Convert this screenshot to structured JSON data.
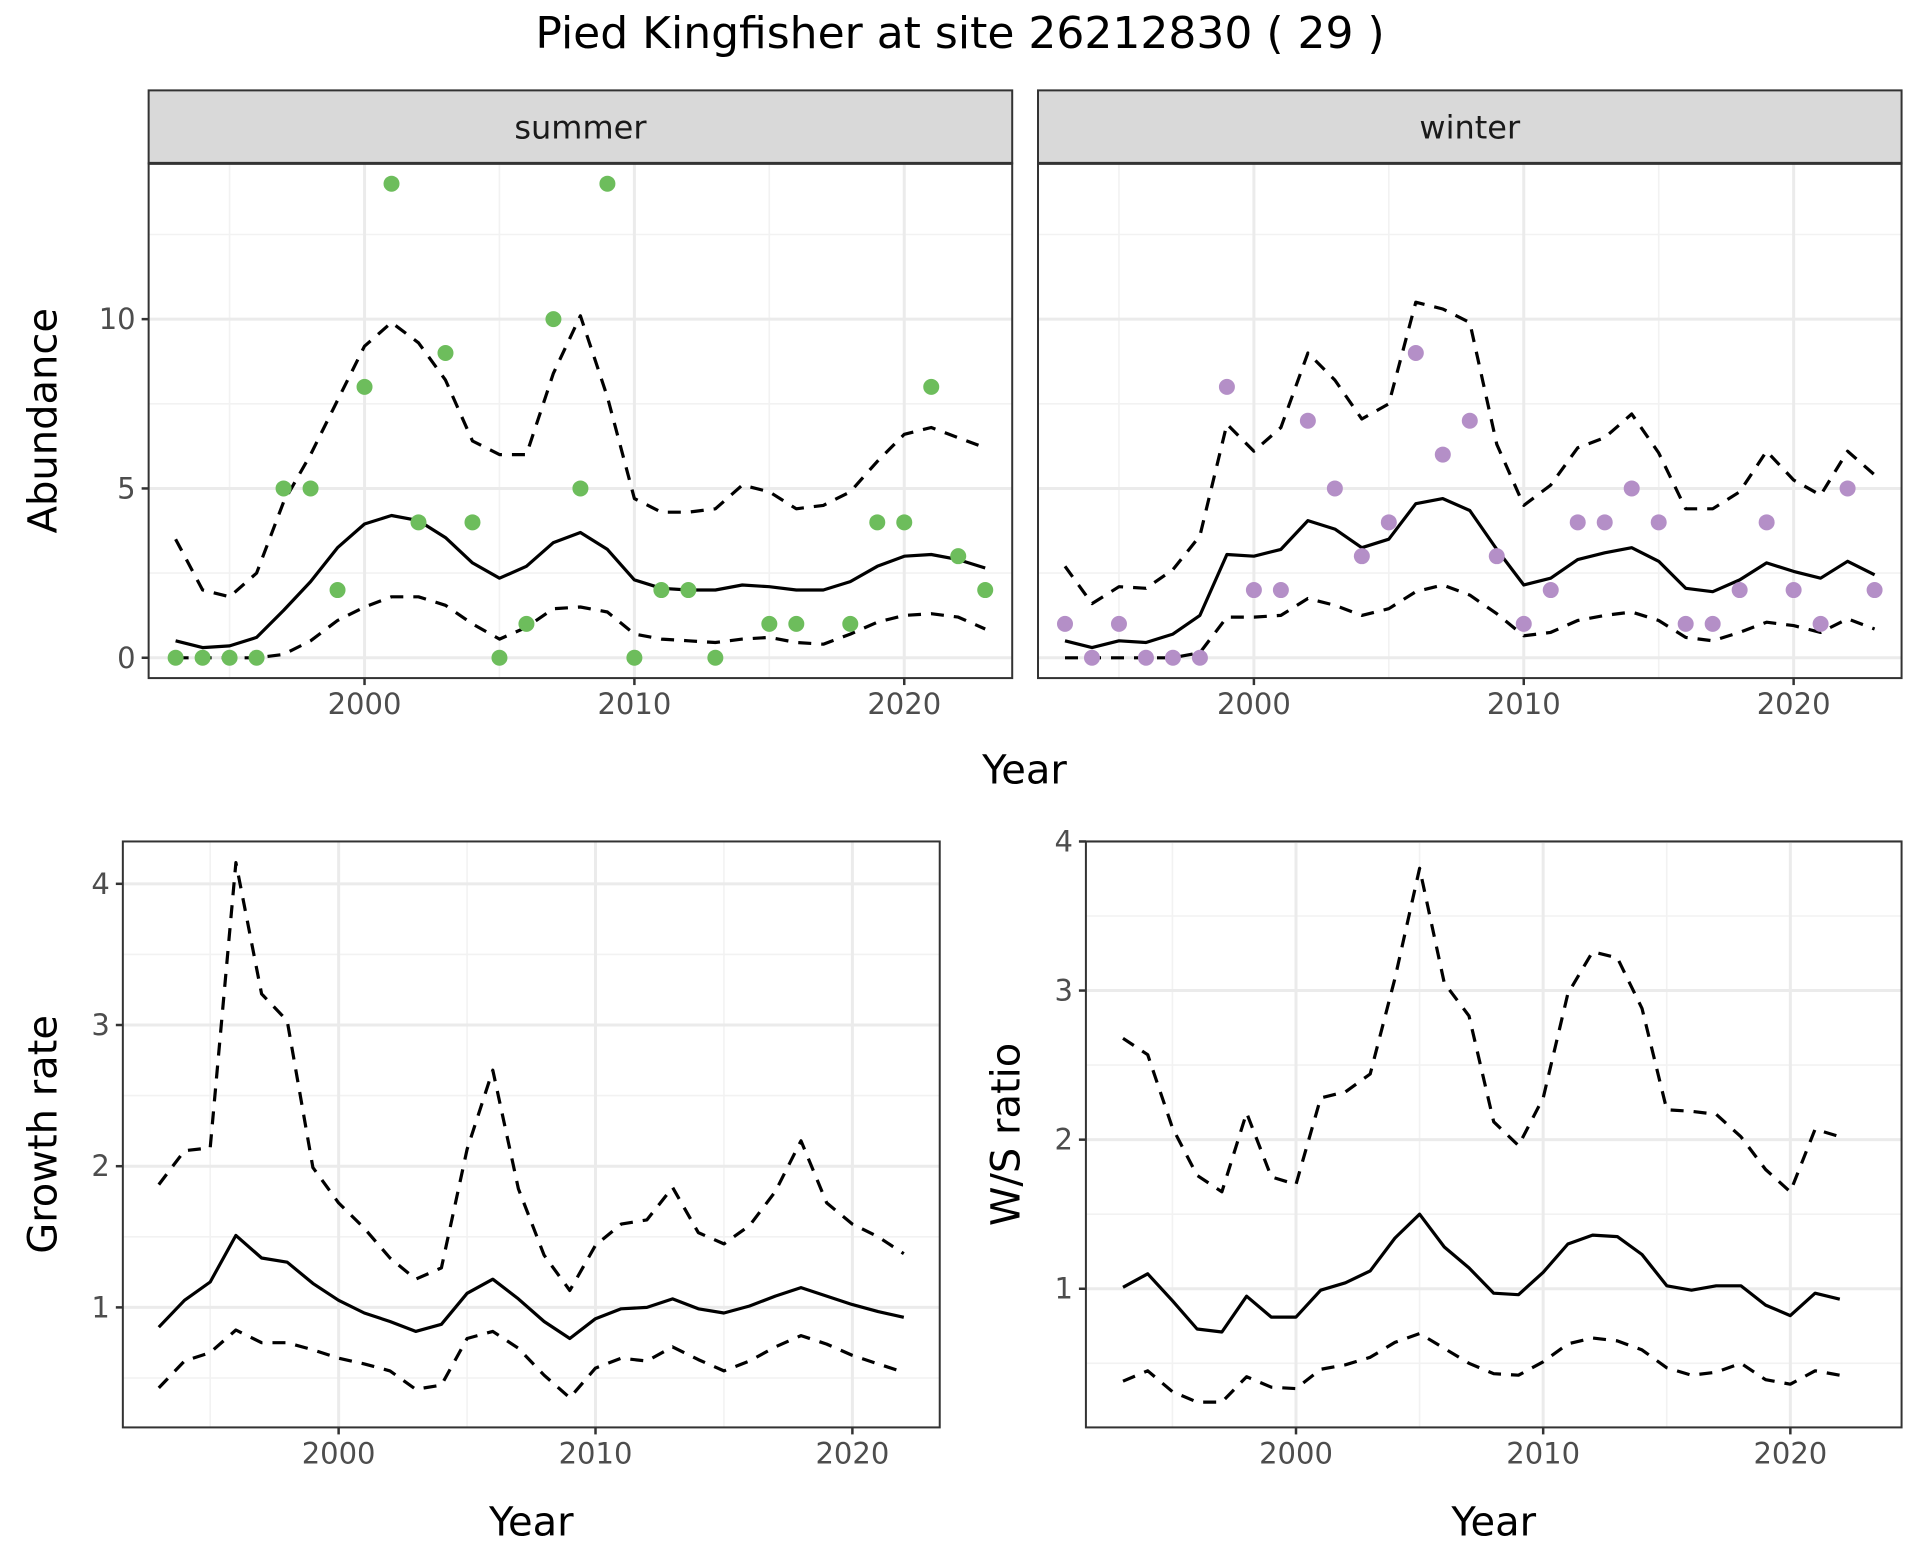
{
  "title": "Pied Kingfisher at site 26212830 ( 29 )",
  "colors": {
    "summer_points": "#6dbd5c",
    "winter_points": "#b48fc7",
    "line": "#000000",
    "grid_major": "#ebebeb",
    "grid_minor": "#f2f2f2",
    "strip_bg": "#d9d9d9",
    "panel_border": "#333333"
  },
  "chart_data": [
    {
      "id": "abundance",
      "type": "scatter",
      "facets": [
        "summer",
        "winter"
      ],
      "xlabel": "Year",
      "ylabel": "Abundance",
      "xlim": [
        1992,
        2024
      ],
      "ylim": [
        -0.6,
        14.6
      ],
      "xticks": [
        2000,
        2010,
        2020
      ],
      "yticks": [
        0,
        5,
        10
      ],
      "grid": true,
      "series": {
        "summer": {
          "points": {
            "x": [
              1993,
              1994,
              1995,
              1996,
              1997,
              1998,
              1999,
              2000,
              2001,
              2002,
              2003,
              2004,
              2005,
              2006,
              2007,
              2008,
              2009,
              2010,
              2011,
              2012,
              2013,
              2015,
              2016,
              2018,
              2019,
              2020,
              2021,
              2022,
              2023
            ],
            "y": [
              0,
              0,
              0,
              0,
              5,
              5,
              2,
              8,
              14,
              4,
              9,
              4,
              0,
              1,
              10,
              5,
              14,
              0,
              2,
              2,
              0,
              1,
              1,
              1,
              4,
              4,
              8,
              3,
              2
            ]
          },
          "mean": {
            "x": [
              1993,
              1994,
              1995,
              1996,
              1997,
              1998,
              1999,
              2000,
              2001,
              2002,
              2003,
              2004,
              2005,
              2006,
              2007,
              2008,
              2009,
              2010,
              2011,
              2012,
              2013,
              2014,
              2015,
              2016,
              2017,
              2018,
              2019,
              2020,
              2021,
              2022,
              2023
            ],
            "y": [
              0.5,
              0.3,
              0.35,
              0.6,
              1.4,
              2.25,
              3.25,
              3.95,
              4.2,
              4.05,
              3.55,
              2.8,
              2.35,
              2.7,
              3.4,
              3.7,
              3.2,
              2.3,
              2.05,
              2.0,
              2.0,
              2.15,
              2.1,
              2.0,
              2.0,
              2.25,
              2.7,
              3.0,
              3.05,
              2.9,
              2.65
            ]
          },
          "upper": {
            "x": [
              1993,
              1994,
              1995,
              1996,
              1997,
              1998,
              1999,
              2000,
              2001,
              2002,
              2003,
              2004,
              2005,
              2006,
              2007,
              2008,
              2009,
              2010,
              2011,
              2012,
              2013,
              2014,
              2015,
              2016,
              2017,
              2018,
              2019,
              2020,
              2021,
              2022,
              2023
            ],
            "y": [
              3.5,
              2.0,
              1.8,
              2.5,
              4.6,
              6.0,
              7.6,
              9.2,
              9.9,
              9.3,
              8.2,
              6.4,
              6.0,
              6.0,
              8.4,
              10.1,
              7.7,
              4.7,
              4.3,
              4.3,
              4.4,
              5.1,
              4.9,
              4.4,
              4.5,
              4.9,
              5.8,
              6.6,
              6.8,
              6.5,
              6.2
            ]
          },
          "lower": {
            "x": [
              1993,
              1994,
              1995,
              1996,
              1997,
              1998,
              1999,
              2000,
              2001,
              2002,
              2003,
              2004,
              2005,
              2006,
              2007,
              2008,
              2009,
              2010,
              2011,
              2012,
              2013,
              2014,
              2015,
              2016,
              2017,
              2018,
              2019,
              2020,
              2021,
              2022,
              2023
            ],
            "y": [
              0,
              0,
              0,
              0,
              0.1,
              0.5,
              1.1,
              1.5,
              1.8,
              1.8,
              1.55,
              1.0,
              0.55,
              0.9,
              1.45,
              1.5,
              1.35,
              0.7,
              0.55,
              0.5,
              0.45,
              0.55,
              0.6,
              0.45,
              0.4,
              0.7,
              1.05,
              1.25,
              1.3,
              1.2,
              0.85
            ]
          }
        },
        "winter": {
          "points": {
            "x": [
              1993,
              1994,
              1995,
              1996,
              1997,
              1998,
              1999,
              2000,
              2001,
              2002,
              2003,
              2004,
              2005,
              2006,
              2007,
              2008,
              2009,
              2010,
              2011,
              2012,
              2013,
              2014,
              2015,
              2016,
              2017,
              2018,
              2019,
              2020,
              2021,
              2022,
              2023
            ],
            "y": [
              1,
              0,
              1,
              0,
              0,
              0,
              8,
              2,
              2,
              7,
              5,
              3,
              4,
              9,
              6,
              7,
              3,
              1,
              2,
              4,
              4,
              5,
              4,
              1,
              1,
              2,
              4,
              2,
              1,
              5,
              2
            ]
          },
          "mean": {
            "x": [
              1993,
              1994,
              1995,
              1996,
              1997,
              1998,
              1999,
              2000,
              2001,
              2002,
              2003,
              2004,
              2005,
              2006,
              2007,
              2008,
              2009,
              2010,
              2011,
              2012,
              2013,
              2014,
              2015,
              2016,
              2017,
              2018,
              2019,
              2020,
              2021,
              2022,
              2023
            ],
            "y": [
              0.5,
              0.3,
              0.5,
              0.45,
              0.7,
              1.25,
              3.05,
              3.0,
              3.2,
              4.05,
              3.8,
              3.25,
              3.5,
              4.55,
              4.7,
              4.35,
              3.2,
              2.15,
              2.35,
              2.9,
              3.1,
              3.25,
              2.85,
              2.05,
              1.95,
              2.3,
              2.8,
              2.55,
              2.35,
              2.85,
              2.45
            ]
          },
          "upper": {
            "x": [
              1993,
              1994,
              1995,
              1996,
              1997,
              1998,
              1999,
              2000,
              2001,
              2002,
              2003,
              2004,
              2005,
              2006,
              2007,
              2008,
              2009,
              2010,
              2011,
              2012,
              2013,
              2014,
              2015,
              2016,
              2017,
              2018,
              2019,
              2020,
              2021,
              2022,
              2023
            ],
            "y": [
              2.7,
              1.6,
              2.1,
              2.05,
              2.6,
              3.6,
              6.9,
              6.1,
              6.8,
              9.0,
              8.2,
              7.05,
              7.5,
              10.5,
              10.3,
              9.9,
              6.3,
              4.5,
              5.1,
              6.2,
              6.5,
              7.2,
              6.05,
              4.4,
              4.4,
              4.9,
              6.1,
              5.25,
              4.8,
              6.1,
              5.4
            ]
          },
          "lower": {
            "x": [
              1993,
              1994,
              1995,
              1996,
              1997,
              1998,
              1999,
              2000,
              2001,
              2002,
              2003,
              2004,
              2005,
              2006,
              2007,
              2008,
              2009,
              2010,
              2011,
              2012,
              2013,
              2014,
              2015,
              2016,
              2017,
              2018,
              2019,
              2020,
              2021,
              2022,
              2023
            ],
            "y": [
              0,
              0,
              0,
              0,
              0,
              0.15,
              1.2,
              1.2,
              1.25,
              1.75,
              1.55,
              1.25,
              1.45,
              1.95,
              2.15,
              1.85,
              1.3,
              0.65,
              0.75,
              1.1,
              1.25,
              1.35,
              1.1,
              0.6,
              0.5,
              0.75,
              1.05,
              0.95,
              0.75,
              1.15,
              0.85
            ]
          }
        }
      }
    },
    {
      "id": "growth",
      "type": "line",
      "xlabel": "Year",
      "ylabel": "Growth rate",
      "xlim": [
        1991.6,
        2023.4
      ],
      "ylim": [
        0.15,
        4.3
      ],
      "xticks": [
        2000,
        2010,
        2020
      ],
      "yticks": [
        1,
        2,
        3,
        4
      ],
      "grid": true,
      "series": [
        {
          "name": "mean",
          "style": "solid",
          "x": [
            1993,
            1994,
            1995,
            1996,
            1997,
            1998,
            1999,
            2000,
            2001,
            2002,
            2003,
            2004,
            2005,
            2006,
            2007,
            2008,
            2009,
            2010,
            2011,
            2012,
            2013,
            2014,
            2015,
            2016,
            2017,
            2018,
            2019,
            2020,
            2021,
            2022
          ],
          "y": [
            0.86,
            1.05,
            1.18,
            1.51,
            1.35,
            1.32,
            1.17,
            1.05,
            0.96,
            0.9,
            0.83,
            0.88,
            1.1,
            1.2,
            1.06,
            0.9,
            0.78,
            0.92,
            0.99,
            1.0,
            1.06,
            0.99,
            0.96,
            1.01,
            1.08,
            1.14,
            1.08,
            1.02,
            0.97,
            0.93
          ]
        },
        {
          "name": "upper",
          "style": "dashed",
          "x": [
            1993,
            1994,
            1995,
            1996,
            1997,
            1998,
            1999,
            2000,
            2001,
            2002,
            2003,
            2004,
            2005,
            2006,
            2007,
            2008,
            2009,
            2010,
            2011,
            2012,
            2013,
            2014,
            2015,
            2016,
            2017,
            2018,
            2019,
            2020,
            2021,
            2022
          ],
          "y": [
            1.87,
            2.11,
            2.13,
            4.15,
            3.22,
            3.03,
            1.99,
            1.74,
            1.56,
            1.35,
            1.2,
            1.28,
            2.12,
            2.68,
            1.84,
            1.37,
            1.12,
            1.44,
            1.59,
            1.62,
            1.85,
            1.53,
            1.45,
            1.58,
            1.82,
            2.18,
            1.74,
            1.59,
            1.5,
            1.38
          ]
        },
        {
          "name": "lower",
          "style": "dashed",
          "x": [
            1993,
            1994,
            1995,
            1996,
            1997,
            1998,
            1999,
            2000,
            2001,
            2002,
            2003,
            2004,
            2005,
            2006,
            2007,
            2008,
            2009,
            2010,
            2011,
            2012,
            2013,
            2014,
            2015,
            2016,
            2017,
            2018,
            2019,
            2020,
            2021,
            2022
          ],
          "y": [
            0.43,
            0.62,
            0.68,
            0.84,
            0.75,
            0.75,
            0.7,
            0.64,
            0.6,
            0.55,
            0.42,
            0.45,
            0.78,
            0.83,
            0.71,
            0.52,
            0.36,
            0.57,
            0.64,
            0.62,
            0.72,
            0.63,
            0.55,
            0.62,
            0.72,
            0.8,
            0.74,
            0.66,
            0.6,
            0.54
          ]
        }
      ]
    },
    {
      "id": "ws_ratio",
      "type": "line",
      "xlabel": "Year",
      "ylabel": "W/S ratio",
      "xlim": [
        1991.5,
        2024.5
      ],
      "ylim": [
        0.07,
        4.0
      ],
      "xticks": [
        2000,
        2010,
        2020
      ],
      "yticks": [
        1,
        2,
        3,
        4
      ],
      "grid": true,
      "series": [
        {
          "name": "mean",
          "style": "solid",
          "x": [
            1993,
            1994,
            1995,
            1996,
            1997,
            1998,
            1999,
            2000,
            2001,
            2002,
            2003,
            2004,
            2005,
            2006,
            2007,
            2008,
            2009,
            2010,
            2011,
            2012,
            2013,
            2014,
            2015,
            2016,
            2017,
            2018,
            2019,
            2020,
            2021,
            2022
          ],
          "y": [
            1.01,
            1.1,
            0.92,
            0.73,
            0.71,
            0.95,
            0.81,
            0.81,
            0.99,
            1.04,
            1.12,
            1.34,
            1.5,
            1.28,
            1.14,
            0.97,
            0.96,
            1.11,
            1.3,
            1.36,
            1.35,
            1.23,
            1.02,
            0.99,
            1.02,
            1.02,
            0.89,
            0.82,
            0.97,
            0.93
          ]
        },
        {
          "name": "upper",
          "style": "dashed",
          "x": [
            1993,
            1994,
            1995,
            1996,
            1997,
            1998,
            1999,
            2000,
            2001,
            2002,
            2003,
            2004,
            2005,
            2006,
            2007,
            2008,
            2009,
            2010,
            2011,
            2012,
            2013,
            2014,
            2015,
            2016,
            2017,
            2018,
            2019,
            2020,
            2021,
            2022
          ],
          "y": [
            2.68,
            2.57,
            2.08,
            1.76,
            1.65,
            2.18,
            1.75,
            1.7,
            2.28,
            2.32,
            2.44,
            3.08,
            3.82,
            3.05,
            2.83,
            2.12,
            1.96,
            2.28,
            2.98,
            3.26,
            3.22,
            2.88,
            2.2,
            2.19,
            2.17,
            2.02,
            1.8,
            1.65,
            2.07,
            2.02
          ]
        },
        {
          "name": "lower",
          "style": "dashed",
          "x": [
            1993,
            1994,
            1995,
            1996,
            1997,
            1998,
            1999,
            2000,
            2001,
            2002,
            2003,
            2004,
            2005,
            2006,
            2007,
            2008,
            2009,
            2010,
            2011,
            2012,
            2013,
            2014,
            2015,
            2016,
            2017,
            2018,
            2019,
            2020,
            2021,
            2022
          ],
          "y": [
            0.38,
            0.45,
            0.31,
            0.24,
            0.24,
            0.41,
            0.34,
            0.33,
            0.46,
            0.49,
            0.54,
            0.64,
            0.7,
            0.6,
            0.5,
            0.43,
            0.42,
            0.51,
            0.63,
            0.67,
            0.65,
            0.59,
            0.47,
            0.42,
            0.44,
            0.5,
            0.39,
            0.36,
            0.45,
            0.42
          ]
        }
      ]
    }
  ]
}
